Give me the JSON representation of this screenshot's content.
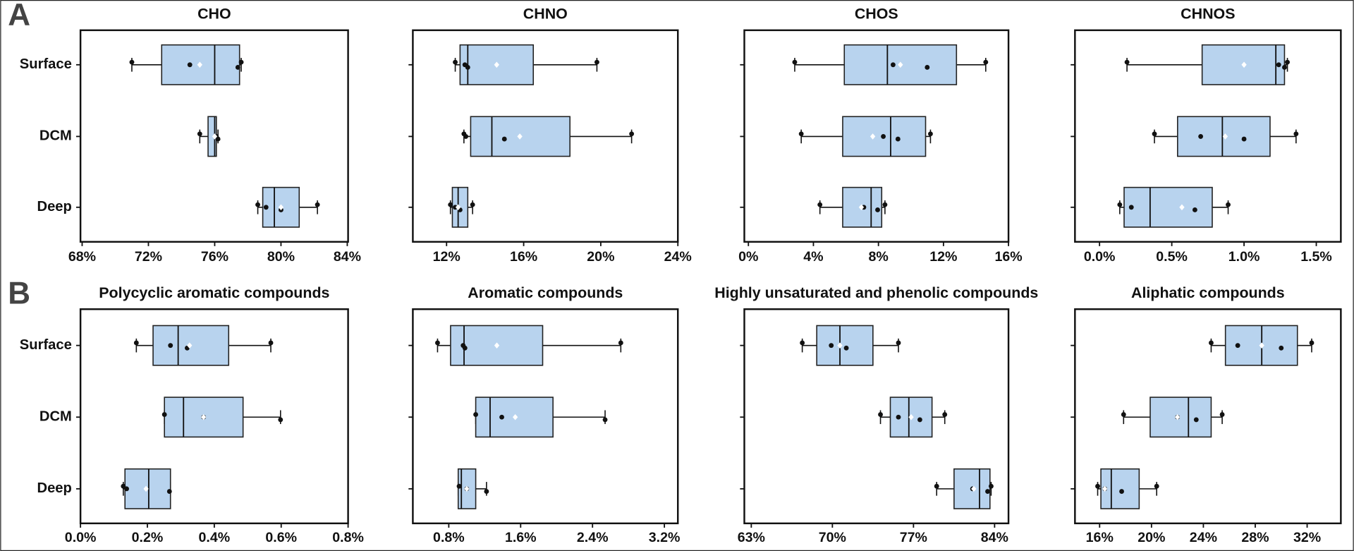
{
  "panel_labels": [
    "A",
    "B"
  ],
  "chart_data": [
    {
      "type": "box",
      "title": "CHO",
      "categories": [
        "Surface",
        "DCM",
        "Deep"
      ],
      "color": "#b8d3ee",
      "xlim": [
        67.9,
        84.05
      ],
      "xticks": [
        {
          "value": 68,
          "label": "68%"
        },
        {
          "value": 72,
          "label": "72%"
        },
        {
          "value": 76,
          "label": "76%"
        },
        {
          "value": 80,
          "label": "80%"
        },
        {
          "value": 84,
          "label": "84%"
        }
      ],
      "boxes": [
        {
          "whisker_low": 71.0,
          "q1": 72.8,
          "median": 76.0,
          "q3": 77.5,
          "whisker_high": 77.6,
          "mean": 75.1,
          "points": [
            71.0,
            74.5,
            77.4,
            77.6
          ]
        },
        {
          "whisker_low": 75.1,
          "q1": 75.6,
          "median": 76.0,
          "q3": 76.1,
          "whisker_high": 76.2,
          "mean": 76.0,
          "points": [
            75.1,
            76.1,
            76.2
          ]
        },
        {
          "whisker_low": 78.6,
          "q1": 78.9,
          "median": 79.6,
          "q3": 81.1,
          "whisker_high": 82.2,
          "mean": 80.0,
          "points": [
            78.6,
            79.1,
            80.0,
            82.2
          ]
        }
      ]
    },
    {
      "type": "box",
      "title": "CHNO",
      "categories": [
        null,
        null,
        null
      ],
      "color": "#b8d3ee",
      "xlim": [
        10.25,
        24.0
      ],
      "xticks": [
        {
          "value": 12,
          "label": "12%"
        },
        {
          "value": 16,
          "label": "16%"
        },
        {
          "value": 20,
          "label": "20%"
        },
        {
          "value": 24,
          "label": "24%"
        }
      ],
      "boxes": [
        {
          "whisker_low": 12.45,
          "q1": 12.7,
          "median": 13.1,
          "q3": 16.5,
          "whisker_high": 19.8,
          "mean": 14.6,
          "points": [
            12.45,
            12.95,
            13.1,
            19.8
          ]
        },
        {
          "whisker_low": 12.9,
          "q1": 13.25,
          "median": 14.35,
          "q3": 18.4,
          "whisker_high": 21.6,
          "mean": 15.8,
          "points": [
            12.9,
            13.0,
            15.0,
            21.6
          ]
        },
        {
          "whisker_low": 12.2,
          "q1": 12.3,
          "median": 12.6,
          "q3": 13.1,
          "whisker_high": 13.35,
          "mean": 12.6,
          "points": [
            12.2,
            12.45,
            12.7,
            13.35
          ]
        }
      ]
    },
    {
      "type": "box",
      "title": "CHOS",
      "categories": [
        null,
        null,
        null
      ],
      "color": "#b8d3ee",
      "xlim": [
        -0.25,
        16.0
      ],
      "xticks": [
        {
          "value": 0,
          "label": "0%"
        },
        {
          "value": 4,
          "label": "4%"
        },
        {
          "value": 8,
          "label": "8%"
        },
        {
          "value": 12,
          "label": "12%"
        },
        {
          "value": 16,
          "label": "16%"
        }
      ],
      "boxes": [
        {
          "whisker_low": 2.85,
          "q1": 5.9,
          "median": 8.55,
          "q3": 12.8,
          "whisker_high": 14.6,
          "mean": 9.35,
          "points": [
            2.85,
            8.9,
            11.0,
            14.6
          ]
        },
        {
          "whisker_low": 3.25,
          "q1": 5.8,
          "median": 8.75,
          "q3": 10.9,
          "whisker_high": 11.2,
          "mean": 7.65,
          "points": [
            3.25,
            8.3,
            9.2,
            11.2
          ]
        },
        {
          "whisker_low": 4.4,
          "q1": 5.8,
          "median": 7.55,
          "q3": 8.2,
          "whisker_high": 8.4,
          "mean": 6.95,
          "points": [
            4.4,
            7.1,
            7.95,
            8.4
          ]
        }
      ]
    },
    {
      "type": "box",
      "title": "CHNOS",
      "categories": [
        null,
        null,
        null
      ],
      "color": "#b8d3ee",
      "xlim": [
        -0.17,
        1.67
      ],
      "xticks": [
        {
          "value": 0,
          "label": "0.0%"
        },
        {
          "value": 0.5,
          "label": "0.5%"
        },
        {
          "value": 1,
          "label": "1.0%"
        },
        {
          "value": 1.5,
          "label": "1.5%"
        }
      ],
      "boxes": [
        {
          "whisker_low": 0.19,
          "q1": 0.71,
          "median": 1.22,
          "q3": 1.28,
          "whisker_high": 1.3,
          "mean": 1.0,
          "points": [
            0.19,
            1.24,
            1.28,
            1.3
          ]
        },
        {
          "whisker_low": 0.38,
          "q1": 0.54,
          "median": 0.85,
          "q3": 1.18,
          "whisker_high": 1.36,
          "mean": 0.87,
          "points": [
            0.38,
            0.7,
            1.0,
            1.36
          ]
        },
        {
          "whisker_low": 0.14,
          "q1": 0.17,
          "median": 0.35,
          "q3": 0.78,
          "whisker_high": 0.89,
          "mean": 0.57,
          "points": [
            0.14,
            0.22,
            0.66,
            0.89
          ]
        }
      ]
    },
    {
      "type": "box",
      "title": "Polycyclic aromatic compounds",
      "categories": [
        "Surface",
        "DCM",
        "Deep"
      ],
      "color": "#b8d3ee",
      "xlim": [
        0,
        0.8
      ],
      "xticks": [
        {
          "value": 0,
          "label": "0.0%"
        },
        {
          "value": 0.2,
          "label": "0.2%"
        },
        {
          "value": 0.4,
          "label": "0.4%"
        },
        {
          "value": 0.6,
          "label": "0.6%"
        },
        {
          "value": 0.8,
          "label": "0.8%"
        }
      ],
      "boxes": [
        {
          "whisker_low": 0.167,
          "q1": 0.217,
          "median": 0.292,
          "q3": 0.443,
          "whisker_high": 0.569,
          "mean": 0.326,
          "points": [
            0.167,
            0.269,
            0.319,
            0.569
          ]
        },
        {
          "whisker_low": 0.251,
          "q1": 0.251,
          "median": 0.308,
          "q3": 0.486,
          "whisker_high": 0.598,
          "mean": 0.368,
          "points": [
            0.251,
            0.368,
            0.598
          ]
        },
        {
          "whisker_low": 0.128,
          "q1": 0.133,
          "median": 0.204,
          "q3": 0.269,
          "whisker_high": 0.269,
          "mean": 0.196,
          "points": [
            0.128,
            0.138,
            0.266
          ]
        }
      ]
    },
    {
      "type": "box",
      "title": "Aromatic compounds",
      "categories": [
        null,
        null,
        null
      ],
      "color": "#b8d3ee",
      "xlim": [
        0.4,
        3.35
      ],
      "xticks": [
        {
          "value": 0.8,
          "label": "0.8%"
        },
        {
          "value": 1.6,
          "label": "1.6%"
        },
        {
          "value": 2.4,
          "label": "2.4%"
        },
        {
          "value": 3.2,
          "label": "3.2%"
        }
      ],
      "boxes": [
        {
          "whisker_low": 0.675,
          "q1": 0.82,
          "median": 0.97,
          "q3": 1.845,
          "whisker_high": 2.715,
          "mean": 1.335,
          "points": [
            0.675,
            0.96,
            0.98,
            2.715
          ]
        },
        {
          "whisker_low": 1.1,
          "q1": 1.1,
          "median": 1.26,
          "q3": 1.96,
          "whisker_high": 2.54,
          "mean": 1.54,
          "points": [
            1.1,
            1.39,
            2.54
          ]
        },
        {
          "whisker_low": 0.905,
          "q1": 0.905,
          "median": 0.94,
          "q3": 1.1,
          "whisker_high": 1.22,
          "mean": 1.0,
          "points": [
            0.915,
            1.0,
            1.22
          ]
        }
      ]
    },
    {
      "type": "box",
      "title": "Highly unsaturated and phenolic compounds",
      "categories": [
        null,
        null,
        null
      ],
      "color": "#b8d3ee",
      "xlim": [
        62.4,
        85.2
      ],
      "xticks": [
        {
          "value": 63,
          "label": "63%"
        },
        {
          "value": 70,
          "label": "70%"
        },
        {
          "value": 77,
          "label": "77%"
        },
        {
          "value": 84,
          "label": "84%"
        }
      ],
      "boxes": [
        {
          "whisker_low": 67.4,
          "q1": 68.65,
          "median": 70.65,
          "q3": 73.5,
          "whisker_high": 75.7,
          "mean": 70.65,
          "points": [
            67.4,
            69.9,
            71.2,
            75.7
          ]
        },
        {
          "whisker_low": 74.15,
          "q1": 75.0,
          "median": 76.6,
          "q3": 78.6,
          "whisker_high": 79.7,
          "mean": 76.8,
          "points": [
            74.15,
            75.7,
            77.55,
            79.7
          ]
        },
        {
          "whisker_low": 79.0,
          "q1": 80.5,
          "median": 82.7,
          "q3": 83.6,
          "whisker_high": 83.7,
          "mean": 82.2,
          "points": [
            79.0,
            82.1,
            83.4,
            83.7
          ]
        }
      ]
    },
    {
      "type": "box",
      "title": "Aliphatic compounds",
      "categories": [
        null,
        null,
        null
      ],
      "color": "#b8d3ee",
      "xlim": [
        14.1,
        34.6
      ],
      "xticks": [
        {
          "value": 16,
          "label": "16%"
        },
        {
          "value": 20,
          "label": "20%"
        },
        {
          "value": 24,
          "label": "24%"
        },
        {
          "value": 28,
          "label": "28%"
        },
        {
          "value": 32,
          "label": "32%"
        }
      ],
      "boxes": [
        {
          "whisker_low": 24.6,
          "q1": 25.7,
          "median": 28.5,
          "q3": 31.25,
          "whisker_high": 32.35,
          "mean": 28.5,
          "points": [
            24.6,
            26.65,
            30.0,
            32.35
          ]
        },
        {
          "whisker_low": 17.85,
          "q1": 19.9,
          "median": 22.85,
          "q3": 24.6,
          "whisker_high": 25.45,
          "mean": 22.0,
          "points": [
            17.85,
            22.0,
            23.45,
            25.45
          ]
        },
        {
          "whisker_low": 15.85,
          "q1": 16.1,
          "median": 16.9,
          "q3": 19.05,
          "whisker_high": 20.4,
          "mean": 16.4,
          "points": [
            15.85,
            16.4,
            17.7,
            20.4
          ]
        }
      ]
    }
  ]
}
